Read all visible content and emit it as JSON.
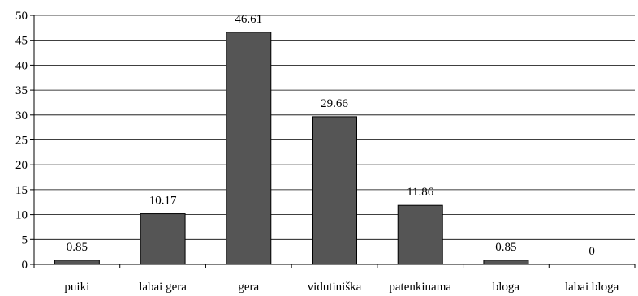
{
  "chart_data": {
    "type": "bar",
    "categories": [
      "puiki",
      "labai gera",
      "gera",
      "vidutiniška",
      "patenkinama",
      "bloga",
      "labai bloga"
    ],
    "values": [
      0.85,
      10.17,
      46.61,
      29.66,
      11.86,
      0.85,
      0
    ],
    "data_labels": [
      "0.85",
      "10.17",
      "46.61",
      "29.66",
      "11.86",
      "0.85",
      "0"
    ],
    "y_ticks": [
      0,
      5,
      10,
      15,
      20,
      25,
      30,
      35,
      40,
      45,
      50
    ],
    "ylim": [
      0,
      50
    ],
    "grid": "horizontal",
    "legend": "none",
    "colors": {
      "bar": "#555555"
    }
  }
}
